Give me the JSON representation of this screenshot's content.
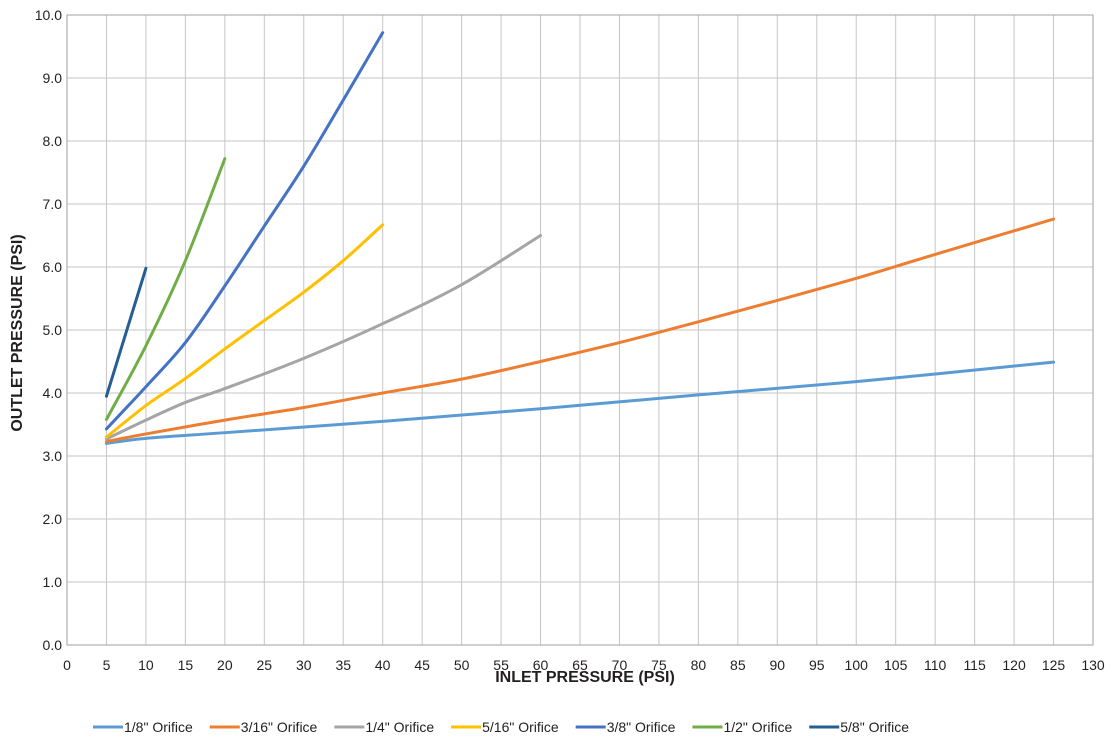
{
  "chart_data": {
    "type": "line",
    "title": "",
    "xlabel": "INLET PRESSURE (PSI)",
    "ylabel": "OUTLET PRESSURE (PSI)",
    "xlim": [
      0,
      130
    ],
    "ylim": [
      0,
      10
    ],
    "x_ticks": [
      0,
      5,
      10,
      15,
      20,
      25,
      30,
      35,
      40,
      45,
      50,
      55,
      60,
      65,
      70,
      75,
      80,
      85,
      90,
      95,
      100,
      105,
      110,
      115,
      120,
      125,
      130
    ],
    "y_ticks": [
      "0.0",
      "1.0",
      "2.0",
      "3.0",
      "4.0",
      "5.0",
      "6.0",
      "7.0",
      "8.0",
      "9.0",
      "10.0"
    ],
    "grid": true,
    "legend_position": "bottom",
    "series": [
      {
        "name": "1/8\" Orifice",
        "color": "#5b9bd5",
        "x": [
          5,
          10,
          20,
          40,
          60,
          80,
          100,
          125
        ],
        "y": [
          3.2,
          3.28,
          3.37,
          3.55,
          3.75,
          3.97,
          4.18,
          4.49
        ]
      },
      {
        "name": "3/16\" Orifice",
        "color": "#ed7d31",
        "x": [
          5,
          10,
          20,
          30,
          40,
          50,
          60,
          70,
          80,
          90,
          100,
          110,
          125
        ],
        "y": [
          3.23,
          3.35,
          3.57,
          3.77,
          4.0,
          4.22,
          4.5,
          4.8,
          5.13,
          5.47,
          5.82,
          6.2,
          6.76
        ]
      },
      {
        "name": "1/4\" Orifice",
        "color": "#a5a5a5",
        "x": [
          5,
          10,
          15,
          20,
          30,
          40,
          50,
          60
        ],
        "y": [
          3.27,
          3.57,
          3.85,
          4.07,
          4.55,
          5.1,
          5.72,
          6.5
        ]
      },
      {
        "name": "5/16\" Orifice",
        "color": "#ffc000",
        "x": [
          5,
          10,
          15,
          20,
          25,
          30,
          35,
          40
        ],
        "y": [
          3.3,
          3.8,
          4.23,
          4.7,
          5.15,
          5.6,
          6.1,
          6.67
        ]
      },
      {
        "name": "3/8\" Orifice",
        "color": "#4472c4",
        "x": [
          5,
          10,
          15,
          20,
          25,
          30,
          35,
          40
        ],
        "y": [
          3.43,
          4.1,
          4.8,
          5.7,
          6.65,
          7.6,
          8.65,
          9.72
        ]
      },
      {
        "name": "1/2\" Orifice",
        "color": "#70ad47",
        "x": [
          5,
          10,
          15,
          20
        ],
        "y": [
          3.58,
          4.75,
          6.1,
          7.72
        ]
      },
      {
        "name": "5/8\" Orifice",
        "color": "#255e91",
        "x": [
          5,
          10
        ],
        "y": [
          3.95,
          5.98
        ]
      }
    ]
  }
}
